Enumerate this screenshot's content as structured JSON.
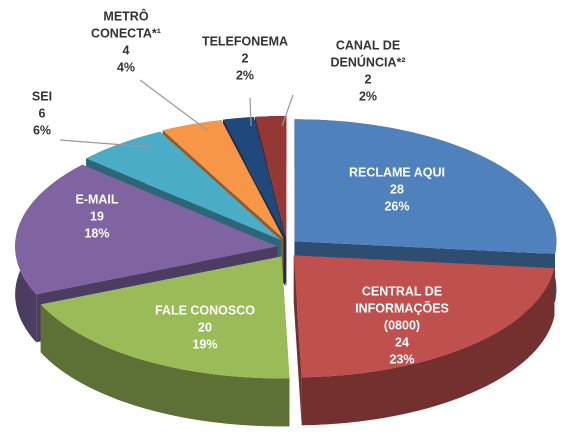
{
  "chart_data": {
    "type": "pie3d",
    "categories": [
      [
        "RECLAME AQUI"
      ],
      [
        "CENTRAL DE",
        "INFORMAÇÕES",
        "(0800)"
      ],
      [
        "FALE CONOSCO"
      ],
      [
        "E-MAIL"
      ],
      [
        "SEI"
      ],
      [
        "METRÔ",
        "CONECTA*¹"
      ],
      [
        "TELEFONEMA"
      ],
      [
        "CANAL DE",
        "DENÚNCIA*²"
      ]
    ],
    "values": [
      28,
      24,
      20,
      19,
      6,
      4,
      2,
      2
    ],
    "percents": [
      26,
      23,
      19,
      18,
      6,
      4,
      2,
      2
    ],
    "percent_labels": [
      "26%",
      "23%",
      "19%",
      "18%",
      "6%",
      "4%",
      "2%",
      "2%"
    ],
    "colors": [
      "#4f81bd",
      "#c0504d",
      "#9bbb59",
      "#8064a2",
      "#4bacc6",
      "#f79646",
      "#1f497d",
      "#953735"
    ]
  }
}
